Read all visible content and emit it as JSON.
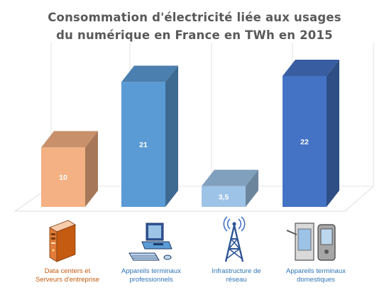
{
  "chart_data": {
    "type": "bar",
    "title_lines": [
      "Consommation d'électricité liée aux usages",
      "du numérique en France en TWh en 2015"
    ],
    "categories": [
      [
        "Data centers et",
        "Serveurs d'entreprise"
      ],
      [
        "Appareils terminaux",
        "professionnels"
      ],
      [
        "Infrastructure de",
        "réseau"
      ],
      [
        "Appareils terminaux",
        "domestiques"
      ]
    ],
    "values": [
      10,
      21,
      3.5,
      22
    ],
    "value_labels": [
      "10",
      "21",
      "3,5",
      "22"
    ],
    "bar_colors": [
      "#F4B183",
      "#5B9BD5",
      "#9DC3E6",
      "#4472C4"
    ],
    "caption_colors": [
      "#C55A11",
      "#2E75B6",
      "#2E75B6",
      "#2E75B6"
    ],
    "icons": [
      "server-tower-icon",
      "desktop-computer-icon",
      "radio-tower-icon",
      "mobile-devices-icon"
    ],
    "ylim": [
      0,
      22
    ],
    "grid": false,
    "legend": "none"
  }
}
